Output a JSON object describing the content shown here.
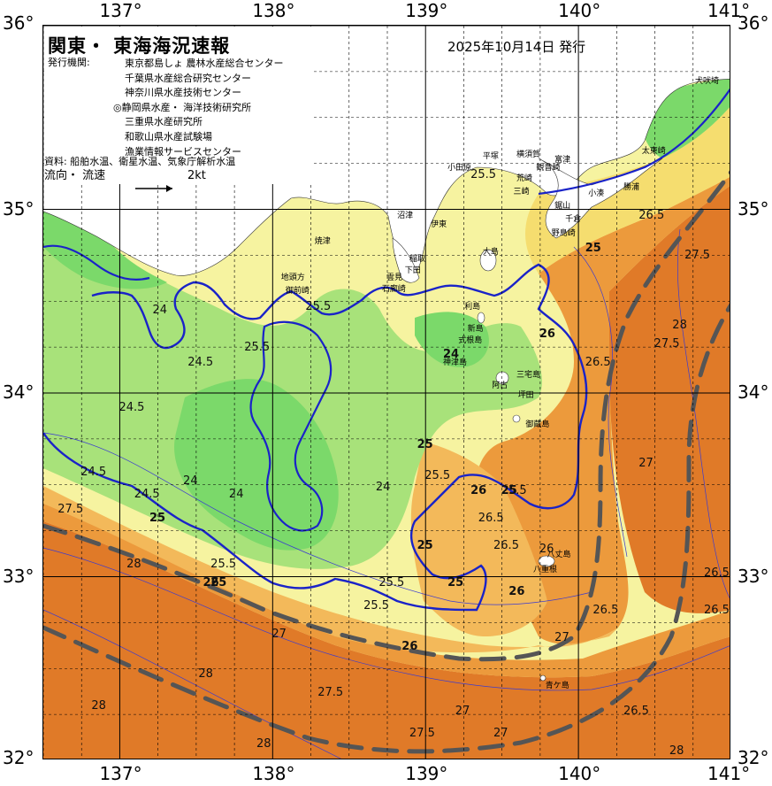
{
  "title": "関東・ 東海海況速報",
  "issue_date": "2025年10月14日 発行",
  "issuer_label": "発行機関:",
  "issuers": [
    "東京都島しょ 農林水産総合センター",
    "千葉県水産総合研究センター",
    "神奈川県水産技術センター",
    "◎静岡県水産・ 海洋技術研究所",
    "三重県水産研究所",
    "和歌山県水産試験場",
    "漁業情報サービスセンター"
  ],
  "data_source": "資料: 船舶水温、衛星水温、気象庁解析水温",
  "flow_legend": {
    "label": "流向・ 流速",
    "speed": "2kt"
  },
  "axes": {
    "lon_labels": [
      "137°",
      "138°",
      "139°",
      "140°",
      "141°"
    ],
    "lat_labels": [
      "36°",
      "35°",
      "34°",
      "33°",
      "32°"
    ],
    "lat_corner_right": [
      "36°",
      "35°",
      "34°",
      "33°",
      "32°"
    ],
    "lon_range": [
      136.5,
      141.0
    ],
    "lat_range": [
      32.0,
      36.0
    ]
  },
  "colors": {
    "cool_green": "#7bd96a",
    "mid_green": "#a8e27a",
    "pale_yellow": "#f6f3a0",
    "yellow": "#f5dd6f",
    "light_orange": "#f3b95a",
    "orange": "#ec9a3c",
    "deep_orange": "#e07a28",
    "land": "#ffffff",
    "kuroshio_line": "#555555",
    "isotherm_25": "#1a23c8"
  },
  "places": [
    {
      "name": "犬吠埼",
      "lon": 140.78,
      "lat": 35.73
    },
    {
      "name": "太東崎",
      "lon": 140.42,
      "lat": 35.35
    },
    {
      "name": "勝浦",
      "lon": 140.3,
      "lat": 35.15
    },
    {
      "name": "小湊",
      "lon": 140.07,
      "lat": 35.12
    },
    {
      "name": "富津",
      "lon": 139.85,
      "lat": 35.3
    },
    {
      "name": "横須賀",
      "lon": 139.6,
      "lat": 35.33
    },
    {
      "name": "平塚",
      "lon": 139.38,
      "lat": 35.32
    },
    {
      "name": "小田原",
      "lon": 139.15,
      "lat": 35.26
    },
    {
      "name": "観音崎",
      "lon": 139.73,
      "lat": 35.26
    },
    {
      "name": "荒崎",
      "lon": 139.6,
      "lat": 35.2
    },
    {
      "name": "三崎",
      "lon": 139.58,
      "lat": 35.13
    },
    {
      "name": "鋸山",
      "lon": 139.85,
      "lat": 35.05
    },
    {
      "name": "千倉",
      "lon": 139.92,
      "lat": 34.98
    },
    {
      "name": "野島崎",
      "lon": 139.83,
      "lat": 34.9
    },
    {
      "name": "沼津",
      "lon": 138.82,
      "lat": 35.0
    },
    {
      "name": "伊東",
      "lon": 139.04,
      "lat": 34.95
    },
    {
      "name": "焼津",
      "lon": 138.28,
      "lat": 34.86
    },
    {
      "name": "稲取",
      "lon": 138.9,
      "lat": 34.76
    },
    {
      "name": "下田",
      "lon": 138.87,
      "lat": 34.7
    },
    {
      "name": "雲見",
      "lon": 138.75,
      "lat": 34.66
    },
    {
      "name": "石廊崎",
      "lon": 138.72,
      "lat": 34.6
    },
    {
      "name": "地頭方",
      "lon": 138.06,
      "lat": 34.66
    },
    {
      "name": "御前崎",
      "lon": 138.09,
      "lat": 34.59
    },
    {
      "name": "大島",
      "lon": 139.38,
      "lat": 34.8
    },
    {
      "name": "利島",
      "lon": 139.26,
      "lat": 34.5
    },
    {
      "name": "新島",
      "lon": 139.28,
      "lat": 34.38
    },
    {
      "name": "式根島",
      "lon": 139.22,
      "lat": 34.32
    },
    {
      "name": "神津島",
      "lon": 139.12,
      "lat": 34.2
    },
    {
      "name": "三宅島",
      "lon": 139.6,
      "lat": 34.13
    },
    {
      "name": "阿古",
      "lon": 139.44,
      "lat": 34.07
    },
    {
      "name": "坪田",
      "lon": 139.61,
      "lat": 34.02
    },
    {
      "name": "御蔵島",
      "lon": 139.66,
      "lat": 33.86
    },
    {
      "name": "八丈島",
      "lon": 139.8,
      "lat": 33.15
    },
    {
      "name": "八重根",
      "lon": 139.71,
      "lat": 33.07
    },
    {
      "name": "青ケ島",
      "lon": 139.79,
      "lat": 32.44
    }
  ],
  "isotherm_labels": [
    {
      "t": "25.5",
      "lon": 139.3,
      "lat": 35.22,
      "blue": false
    },
    {
      "t": "25.5",
      "lon": 137.82,
      "lat": 34.28,
      "blue": false
    },
    {
      "t": "25.5",
      "lon": 138.22,
      "lat": 34.5,
      "blue": false
    },
    {
      "t": "24.5",
      "lon": 137.45,
      "lat": 34.2,
      "blue": false
    },
    {
      "t": "24.5",
      "lon": 137.0,
      "lat": 33.95,
      "blue": false
    },
    {
      "t": "24.5",
      "lon": 136.75,
      "lat": 33.6,
      "blue": false
    },
    {
      "t": "24.5",
      "lon": 137.1,
      "lat": 33.48,
      "blue": false
    },
    {
      "t": "24",
      "lon": 137.22,
      "lat": 34.48,
      "blue": false
    },
    {
      "t": "24",
      "lon": 137.42,
      "lat": 33.55,
      "blue": false
    },
    {
      "t": "24",
      "lon": 137.72,
      "lat": 33.48,
      "blue": false
    },
    {
      "t": "24",
      "lon": 139.12,
      "lat": 34.24,
      "blue": true
    },
    {
      "t": "24",
      "lon": 138.68,
      "lat": 33.52,
      "blue": false
    },
    {
      "t": "25",
      "lon": 138.95,
      "lat": 33.75,
      "blue": true
    },
    {
      "t": "25",
      "lon": 138.95,
      "lat": 33.2,
      "blue": true
    },
    {
      "t": "25",
      "lon": 139.15,
      "lat": 33.0,
      "blue": true
    },
    {
      "t": "25",
      "lon": 139.5,
      "lat": 33.5,
      "blue": true
    },
    {
      "t": "25",
      "lon": 137.2,
      "lat": 33.35,
      "blue": true
    },
    {
      "t": "25",
      "lon": 137.6,
      "lat": 33.0,
      "blue": true
    },
    {
      "t": "25",
      "lon": 140.05,
      "lat": 34.82,
      "blue": true
    },
    {
      "t": "25.5",
      "lon": 139.0,
      "lat": 33.58,
      "blue": false
    },
    {
      "t": "25.5",
      "lon": 139.5,
      "lat": 33.5,
      "blue": false
    },
    {
      "t": "25.5",
      "lon": 137.6,
      "lat": 33.1,
      "blue": false
    },
    {
      "t": "25.5",
      "lon": 138.7,
      "lat": 33.0,
      "blue": false
    },
    {
      "t": "25.5",
      "lon": 138.6,
      "lat": 32.87,
      "blue": false
    },
    {
      "t": "26",
      "lon": 139.3,
      "lat": 33.5,
      "blue": true
    },
    {
      "t": "26",
      "lon": 139.55,
      "lat": 32.95,
      "blue": true
    },
    {
      "t": "26",
      "lon": 138.85,
      "lat": 32.65,
      "blue": true
    },
    {
      "t": "26",
      "lon": 139.75,
      "lat": 34.35,
      "blue": true
    },
    {
      "t": "26",
      "lon": 137.55,
      "lat": 33.0,
      "blue": true
    },
    {
      "t": "26",
      "lon": 139.75,
      "lat": 33.18,
      "blue": false
    },
    {
      "t": "26.5",
      "lon": 139.35,
      "lat": 33.35,
      "blue": false
    },
    {
      "t": "26.5",
      "lon": 139.45,
      "lat": 33.2,
      "blue": false
    },
    {
      "t": "26.5",
      "lon": 140.05,
      "lat": 34.2,
      "blue": false
    },
    {
      "t": "26.5",
      "lon": 140.1,
      "lat": 32.85,
      "blue": false
    },
    {
      "t": "26.5",
      "lon": 140.3,
      "lat": 32.3,
      "blue": false
    },
    {
      "t": "26.5",
      "lon": 140.85,
      "lat": 33.05,
      "blue": false
    },
    {
      "t": "26.5",
      "lon": 140.92,
      "lat": 32.85,
      "blue": false
    },
    {
      "t": "26.5",
      "lon": 140.4,
      "lat": 35.0,
      "blue": false
    },
    {
      "t": "27",
      "lon": 138.0,
      "lat": 32.72,
      "blue": false
    },
    {
      "t": "27",
      "lon": 139.45,
      "lat": 32.18,
      "blue": false
    },
    {
      "t": "27",
      "lon": 139.2,
      "lat": 32.3,
      "blue": false
    },
    {
      "t": "27",
      "lon": 140.4,
      "lat": 33.65,
      "blue": false
    },
    {
      "t": "27",
      "lon": 139.85,
      "lat": 32.7,
      "blue": false
    },
    {
      "t": "27.5",
      "lon": 140.7,
      "lat": 34.78,
      "blue": false
    },
    {
      "t": "27.5",
      "lon": 140.5,
      "lat": 34.3,
      "blue": false
    },
    {
      "t": "27.5",
      "lon": 136.6,
      "lat": 33.4,
      "blue": false
    },
    {
      "t": "27.5",
      "lon": 138.3,
      "lat": 32.4,
      "blue": false
    },
    {
      "t": "27.5",
      "lon": 138.9,
      "lat": 32.18,
      "blue": false
    },
    {
      "t": "28",
      "lon": 137.52,
      "lat": 32.5,
      "blue": false
    },
    {
      "t": "28",
      "lon": 136.82,
      "lat": 32.33,
      "blue": false
    },
    {
      "t": "28",
      "lon": 137.9,
      "lat": 32.12,
      "blue": false
    },
    {
      "t": "28",
      "lon": 140.62,
      "lat": 34.4,
      "blue": false
    },
    {
      "t": "28",
      "lon": 140.6,
      "lat": 32.08,
      "blue": false
    },
    {
      "t": "28",
      "lon": 137.05,
      "lat": 33.1,
      "blue": false
    }
  ]
}
